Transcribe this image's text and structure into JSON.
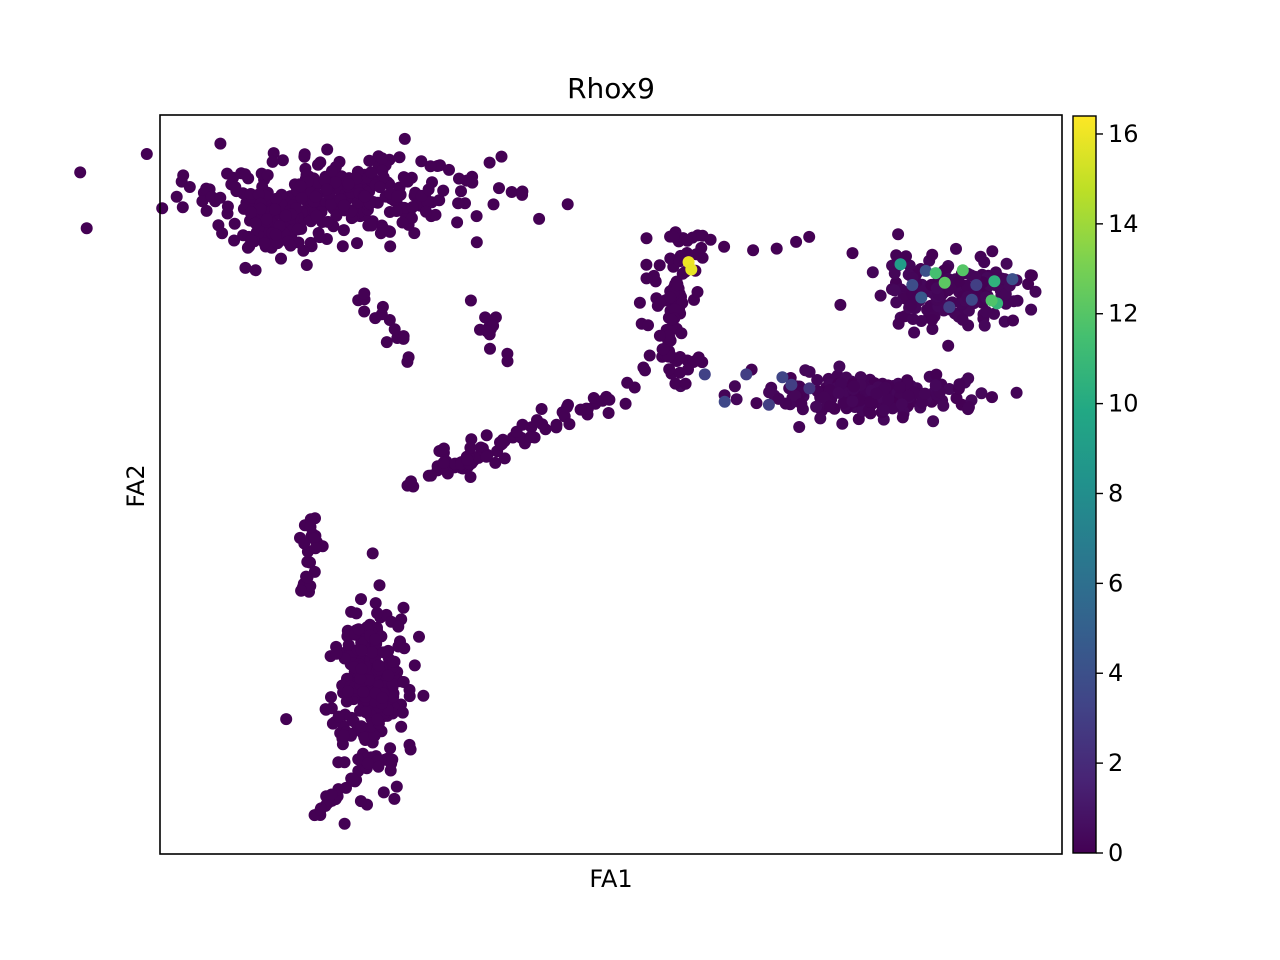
{
  "chart_data": {
    "type": "scatter",
    "title": "Rhox9",
    "xlabel": "FA1",
    "ylabel": "FA2",
    "xlim": [
      0,
      100
    ],
    "ylim": [
      0,
      100
    ],
    "x_ticks_shown": false,
    "y_ticks_shown": false,
    "grid": false,
    "colormap": "viridis",
    "colorbar": {
      "range": [
        0,
        16.4
      ],
      "ticks": [
        0,
        2,
        4,
        6,
        8,
        10,
        12,
        14,
        16
      ],
      "tick_labels": [
        "0",
        "2",
        "4",
        "6",
        "8",
        "10",
        "12",
        "14",
        "16"
      ]
    },
    "clusters": [
      {
        "name": "top-left",
        "cx": 19,
        "cy": 89,
        "sx": 10,
        "sy": 3.5,
        "n": 300,
        "value": 0
      },
      {
        "name": "top-left-lower",
        "cx": 12,
        "cy": 85,
        "sx": 3,
        "sy": 2.5,
        "n": 80,
        "value": 0
      },
      {
        "name": "bottom-left",
        "cx": 23,
        "cy": 23,
        "sx": 2.8,
        "sy": 7,
        "n": 260,
        "value": 0
      },
      {
        "name": "right-upper",
        "cx": 88,
        "cy": 76,
        "sx": 5,
        "sy": 2.8,
        "n": 170,
        "value": 0.3
      },
      {
        "name": "right-mid",
        "cx": 79,
        "cy": 62,
        "sx": 8,
        "sy": 1.8,
        "n": 200,
        "value": 0.3
      },
      {
        "name": "mid-branch",
        "cx": 57,
        "cy": 77,
        "sx": 1.8,
        "sy": 5,
        "n": 50,
        "value": 0
      }
    ],
    "paths": [
      {
        "name": "left-stem",
        "x0": 17,
        "y0": 45,
        "x1": 16,
        "y1": 35,
        "n": 25,
        "jitter": 0.6
      },
      {
        "name": "lower-tail",
        "x0": 17,
        "y0": 4.5,
        "x1": 23,
        "y1": 12,
        "n": 22,
        "jitter": 0.3
      },
      {
        "name": "center-diag",
        "x0": 28,
        "y0": 50,
        "x1": 46,
        "y1": 60,
        "n": 70,
        "jitter": 1.0
      },
      {
        "name": "center-to-right",
        "x0": 46,
        "y0": 60,
        "x1": 60,
        "y1": 67,
        "n": 30,
        "jitter": 0.8
      },
      {
        "name": "branch-up",
        "x0": 56,
        "y0": 67,
        "x1": 58,
        "y1": 84,
        "n": 30,
        "jitter": 0.8
      },
      {
        "name": "left-top-stem",
        "x0": 22,
        "y0": 76,
        "x1": 28,
        "y1": 67,
        "n": 15,
        "jitter": 0.6
      },
      {
        "name": "mid-stem",
        "x0": 36,
        "y0": 74,
        "x1": 38,
        "y1": 66,
        "n": 14,
        "jitter": 0.6
      },
      {
        "name": "mid-arc",
        "x0": 59,
        "y0": 82,
        "x1": 83,
        "y1": 82,
        "n": 10,
        "jitter": 0.8
      }
    ],
    "highlight_points": [
      {
        "x": 58.6,
        "y": 80.1,
        "value": 16.0
      },
      {
        "x": 58.9,
        "y": 79.1,
        "value": 15.8
      },
      {
        "x": 82.1,
        "y": 79.8,
        "value": 9.0
      },
      {
        "x": 84.9,
        "y": 78.9,
        "value": 4.0
      },
      {
        "x": 86.0,
        "y": 78.6,
        "value": 11.5
      },
      {
        "x": 87.0,
        "y": 77.3,
        "value": 12.2
      },
      {
        "x": 89.0,
        "y": 79.0,
        "value": 12.0
      },
      {
        "x": 92.5,
        "y": 77.5,
        "value": 10.5
      },
      {
        "x": 92.8,
        "y": 74.5,
        "value": 10.8
      },
      {
        "x": 92.2,
        "y": 74.9,
        "value": 11.8
      },
      {
        "x": 83.4,
        "y": 77.0,
        "value": 3.8
      },
      {
        "x": 84.4,
        "y": 75.3,
        "value": 4.5
      },
      {
        "x": 90.5,
        "y": 77.0,
        "value": 3.0
      },
      {
        "x": 90.0,
        "y": 75.0,
        "value": 3.5
      },
      {
        "x": 87.5,
        "y": 74.0,
        "value": 3.0
      },
      {
        "x": 94.5,
        "y": 77.8,
        "value": 4.0
      },
      {
        "x": 60.4,
        "y": 64.9,
        "value": 3.2
      },
      {
        "x": 62.6,
        "y": 61.2,
        "value": 3.5
      },
      {
        "x": 65.0,
        "y": 64.9,
        "value": 3.0
      },
      {
        "x": 69.0,
        "y": 64.5,
        "value": 3.4
      },
      {
        "x": 70.0,
        "y": 63.5,
        "value": 3.0
      },
      {
        "x": 67.5,
        "y": 60.8,
        "value": 3.0
      },
      {
        "x": 72.0,
        "y": 63.0,
        "value": 2.5
      }
    ]
  }
}
